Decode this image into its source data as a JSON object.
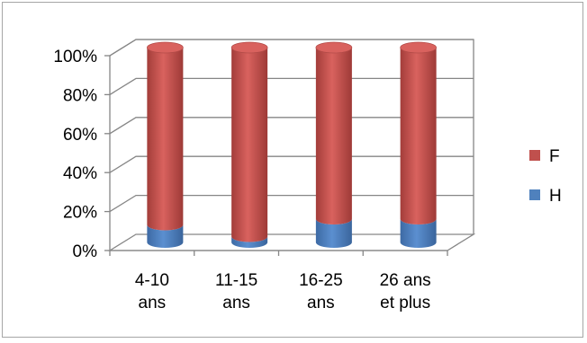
{
  "chart_data": {
    "type": "bar",
    "stacked": true,
    "percent": true,
    "style": "3d-cylinder",
    "categories": [
      [
        "4-10",
        "ans"
      ],
      [
        "11-15",
        "ans"
      ],
      [
        "16-25",
        "ans"
      ],
      [
        "26 ans",
        "et plus"
      ]
    ],
    "series": [
      {
        "name": "H",
        "color": "#4f81bd",
        "values": [
          9,
          3,
          12,
          12
        ]
      },
      {
        "name": "F",
        "color": "#c0504d",
        "values": [
          91,
          97,
          88,
          88
        ]
      }
    ],
    "ylim": [
      0,
      100
    ],
    "yticks": [
      "0%",
      "20%",
      "40%",
      "60%",
      "80%",
      "100%"
    ],
    "grid": true,
    "legend_position": "right",
    "legend": [
      {
        "name": "F",
        "color": "#c0504d"
      },
      {
        "name": "H",
        "color": "#4f81bd"
      }
    ]
  }
}
